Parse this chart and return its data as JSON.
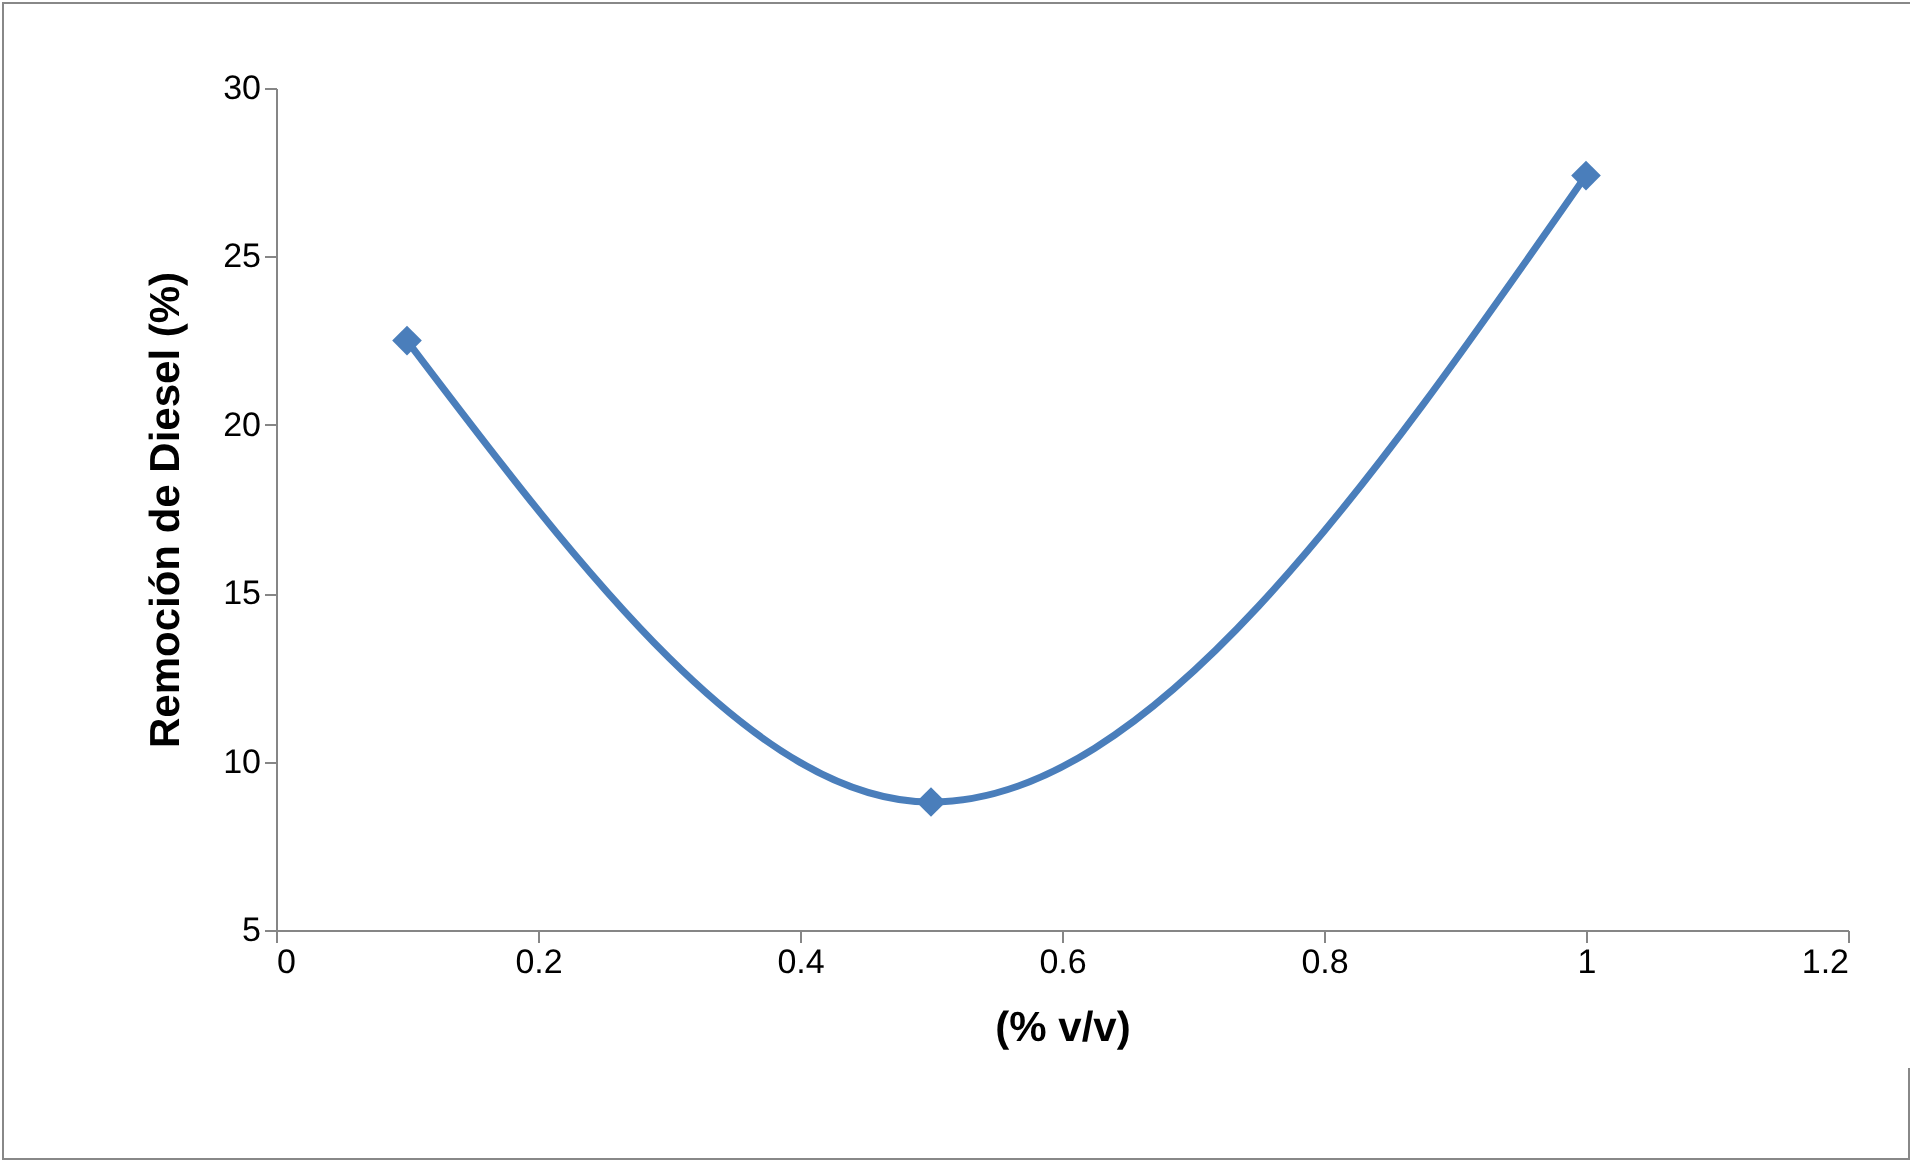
{
  "chart_data": {
    "type": "line",
    "xlabel": "(% v/v)",
    "ylabel": "Remoción de Diesel (%)",
    "x": [
      0.1,
      0.5,
      1
    ],
    "series": [
      {
        "color": "#4a7ebb",
        "values": [
          22.5,
          8.8,
          27.4
        ]
      }
    ],
    "xlim": [
      0,
      1.2
    ],
    "xticks": [
      0,
      0.2,
      0.4,
      0.6,
      0.8,
      1,
      1.2
    ],
    "ylim": [
      5,
      30
    ],
    "yticks": [
      5,
      10,
      15,
      20,
      25,
      30
    ],
    "grid": false,
    "legend": false,
    "marker": "diamond",
    "line_style": "solid"
  }
}
